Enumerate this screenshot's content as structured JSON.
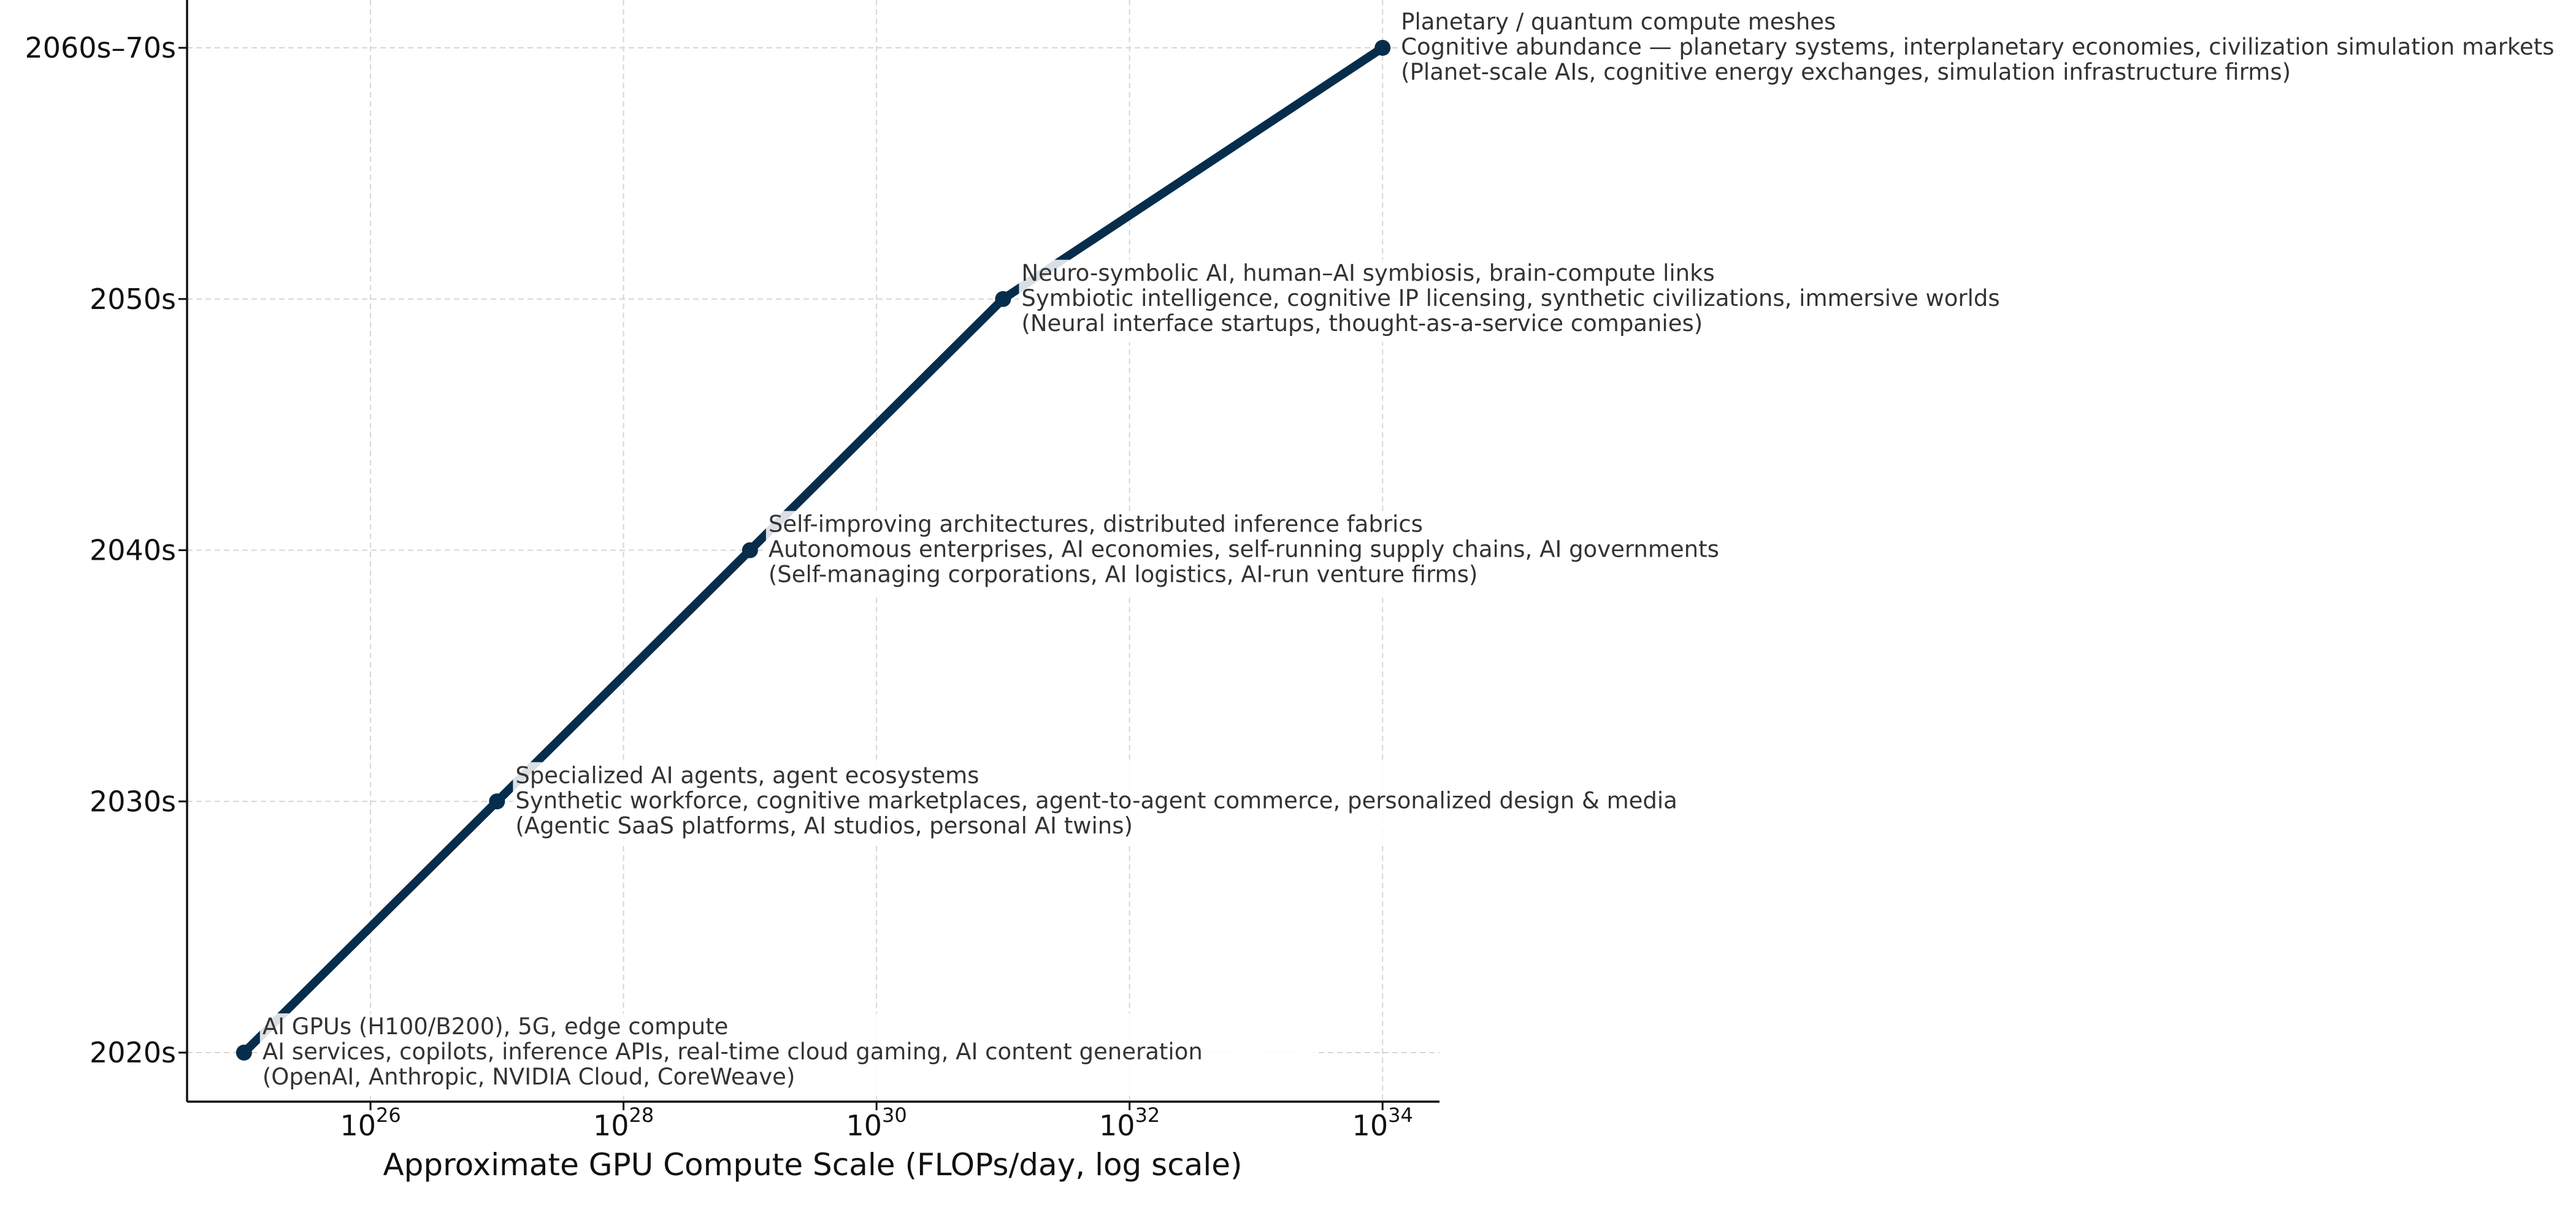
{
  "chart_data": {
    "type": "line",
    "title": "",
    "xlabel": "Approximate GPU Compute Scale (FLOPs/day, log scale)",
    "ylabel": "",
    "x_scale": "log",
    "xlim_log10": [
      24.55,
      34.45
    ],
    "ylim_index": [
      -0.2,
      4.2
    ],
    "grid": true,
    "x_ticks": [
      {
        "base": "10",
        "exp": "26",
        "log10": 26
      },
      {
        "base": "10",
        "exp": "28",
        "log10": 28
      },
      {
        "base": "10",
        "exp": "30",
        "log10": 30
      },
      {
        "base": "10",
        "exp": "32",
        "log10": 32
      },
      {
        "base": "10",
        "exp": "34",
        "log10": 34
      }
    ],
    "y_categories": [
      "2020s",
      "2030s",
      "2040s",
      "2050s",
      "2060s–70s"
    ],
    "line_color": "#062d4b",
    "series": [
      {
        "points": [
          {
            "x_log10": 25,
            "y": "2020s",
            "annotation": [
              "AI GPUs (H100/B200), 5G, edge compute",
              "AI services, copilots, inference APIs, real-time cloud gaming, AI content generation",
              "(OpenAI, Anthropic, NVIDIA Cloud, CoreWeave)"
            ]
          },
          {
            "x_log10": 27,
            "y": "2030s",
            "annotation": [
              "Specialized AI agents, agent ecosystems",
              "Synthetic workforce, cognitive marketplaces, agent-to-agent commerce, personalized design & media",
              "(Agentic SaaS platforms, AI studios, personal AI twins)"
            ]
          },
          {
            "x_log10": 29,
            "y": "2040s",
            "annotation": [
              "Self-improving architectures, distributed inference fabrics",
              "Autonomous enterprises, AI economies, self-running supply chains, AI governments",
              "(Self-managing corporations, AI logistics, AI-run venture firms)"
            ]
          },
          {
            "x_log10": 31,
            "y": "2050s",
            "annotation": [
              "Neuro-symbolic AI, human–AI symbiosis, brain-compute links",
              "Symbiotic intelligence, cognitive IP licensing, synthetic civilizations, immersive worlds",
              "(Neural interface startups, thought-as-a-service companies)"
            ]
          },
          {
            "x_log10": 34,
            "y": "2060s–70s",
            "annotation": [
              "Planetary / quantum compute meshes",
              "Cognitive abundance — planetary systems, interplanetary economies, civilization simulation markets",
              "(Planet-scale AIs, cognitive energy exchanges, simulation infrastructure firms)"
            ]
          }
        ]
      }
    ]
  }
}
